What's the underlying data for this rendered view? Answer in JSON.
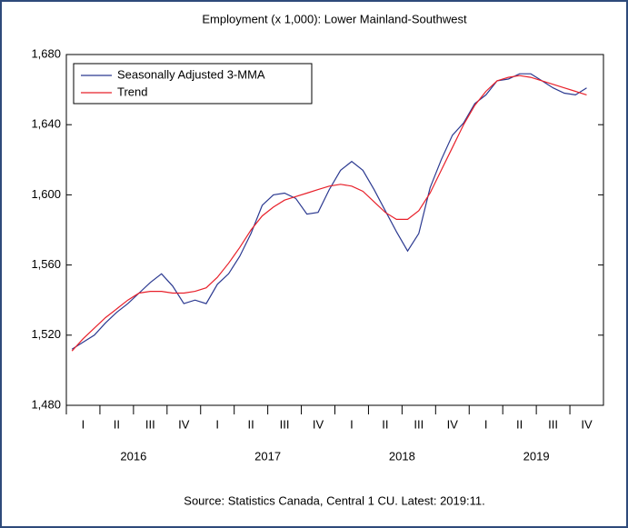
{
  "chart_data": {
    "type": "line",
    "title": "Employment (x 1,000): Lower Mainland-Southwest",
    "source": "Source:  Statistics Canada, Central 1 CU. Latest: 2019:11.",
    "quarter_labels": [
      "I",
      "II",
      "III",
      "IV",
      "I",
      "II",
      "III",
      "IV",
      "I",
      "II",
      "III",
      "IV",
      "I",
      "II",
      "III",
      "IV"
    ],
    "years": [
      "2016",
      "2017",
      "2018",
      "2019"
    ],
    "series": [
      {
        "name": "Seasonally Adjusted 3-MMA",
        "color": "#2b3990",
        "values": [
          1512,
          1516,
          1520,
          1527,
          1533,
          1538,
          1544,
          1550,
          1555,
          1548,
          1538,
          1540,
          1538,
          1549,
          1555,
          1565,
          1578,
          1594,
          1600,
          1601,
          1598,
          1589,
          1590,
          1603,
          1614,
          1619,
          1614,
          1603,
          1591,
          1579,
          1568,
          1578,
          1604,
          1620,
          1634,
          1641,
          1652,
          1657,
          1665,
          1666,
          1669,
          1669,
          1665,
          1661,
          1658,
          1657,
          1661
        ]
      },
      {
        "name": "Trend",
        "color": "#e8202a",
        "values": [
          1511,
          1518,
          1524,
          1530,
          1535,
          1540,
          1544,
          1545,
          1545,
          1544,
          1544,
          1545,
          1547,
          1553,
          1561,
          1570,
          1580,
          1588,
          1593,
          1597,
          1599,
          1601,
          1603,
          1605,
          1606,
          1605,
          1602,
          1596,
          1590,
          1586,
          1586,
          1591,
          1601,
          1614,
          1627,
          1640,
          1651,
          1659,
          1665,
          1667,
          1668,
          1667,
          1665,
          1663,
          1661,
          1659,
          1657
        ]
      }
    ],
    "ylim": [
      1480,
      1680
    ],
    "yticks": [
      {
        "value": 1480,
        "label": "1,480"
      },
      {
        "value": 1520,
        "label": "1,520"
      },
      {
        "value": 1560,
        "label": "1,560"
      },
      {
        "value": 1600,
        "label": "1,600"
      },
      {
        "value": 1640,
        "label": "1,640"
      },
      {
        "value": 1680,
        "label": "1,680"
      }
    ],
    "legend": "upper left"
  }
}
